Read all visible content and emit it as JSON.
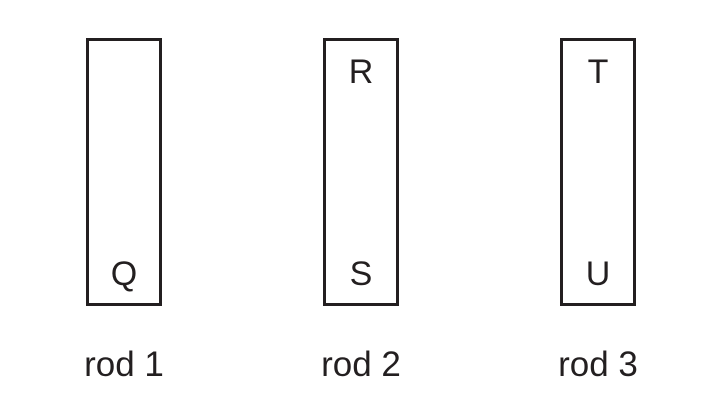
{
  "rods": [
    {
      "top_label": "",
      "bottom_label": "Q",
      "caption": "rod 1"
    },
    {
      "top_label": "R",
      "bottom_label": "S",
      "caption": "rod 2"
    },
    {
      "top_label": "T",
      "bottom_label": "U",
      "caption": "rod 3"
    }
  ],
  "colors": {
    "ink": "#231f20",
    "background": "#ffffff"
  }
}
